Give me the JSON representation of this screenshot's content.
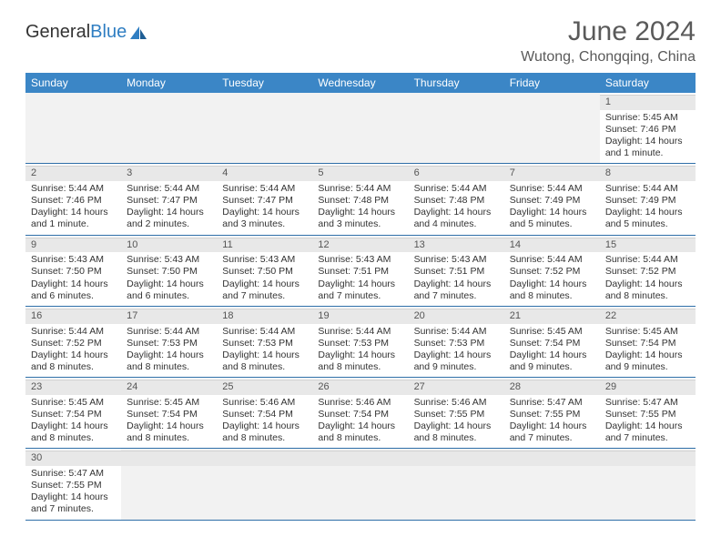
{
  "logo": {
    "text1": "General",
    "text2": "Blue"
  },
  "title": "June 2024",
  "location": "Wutong, Chongqing, China",
  "colors": {
    "header_bg": "#3b86c6",
    "header_text": "#ffffff",
    "daynum_bg": "#e8e8e8",
    "row_border": "#2f6fa8",
    "body_text": "#333333",
    "title_text": "#5a5a5a"
  },
  "weekdays": [
    "Sunday",
    "Monday",
    "Tuesday",
    "Wednesday",
    "Thursday",
    "Friday",
    "Saturday"
  ],
  "layout": {
    "columns": 7,
    "rows": 6,
    "cell_font_size_pt": 10.5,
    "header_font_size_pt": 12
  },
  "days": [
    {
      "n": 1,
      "sunrise": "5:45 AM",
      "sunset": "7:46 PM",
      "daylight": "14 hours and 1 minute."
    },
    {
      "n": 2,
      "sunrise": "5:44 AM",
      "sunset": "7:46 PM",
      "daylight": "14 hours and 1 minute."
    },
    {
      "n": 3,
      "sunrise": "5:44 AM",
      "sunset": "7:47 PM",
      "daylight": "14 hours and 2 minutes."
    },
    {
      "n": 4,
      "sunrise": "5:44 AM",
      "sunset": "7:47 PM",
      "daylight": "14 hours and 3 minutes."
    },
    {
      "n": 5,
      "sunrise": "5:44 AM",
      "sunset": "7:48 PM",
      "daylight": "14 hours and 3 minutes."
    },
    {
      "n": 6,
      "sunrise": "5:44 AM",
      "sunset": "7:48 PM",
      "daylight": "14 hours and 4 minutes."
    },
    {
      "n": 7,
      "sunrise": "5:44 AM",
      "sunset": "7:49 PM",
      "daylight": "14 hours and 5 minutes."
    },
    {
      "n": 8,
      "sunrise": "5:44 AM",
      "sunset": "7:49 PM",
      "daylight": "14 hours and 5 minutes."
    },
    {
      "n": 9,
      "sunrise": "5:43 AM",
      "sunset": "7:50 PM",
      "daylight": "14 hours and 6 minutes."
    },
    {
      "n": 10,
      "sunrise": "5:43 AM",
      "sunset": "7:50 PM",
      "daylight": "14 hours and 6 minutes."
    },
    {
      "n": 11,
      "sunrise": "5:43 AM",
      "sunset": "7:50 PM",
      "daylight": "14 hours and 7 minutes."
    },
    {
      "n": 12,
      "sunrise": "5:43 AM",
      "sunset": "7:51 PM",
      "daylight": "14 hours and 7 minutes."
    },
    {
      "n": 13,
      "sunrise": "5:43 AM",
      "sunset": "7:51 PM",
      "daylight": "14 hours and 7 minutes."
    },
    {
      "n": 14,
      "sunrise": "5:44 AM",
      "sunset": "7:52 PM",
      "daylight": "14 hours and 8 minutes."
    },
    {
      "n": 15,
      "sunrise": "5:44 AM",
      "sunset": "7:52 PM",
      "daylight": "14 hours and 8 minutes."
    },
    {
      "n": 16,
      "sunrise": "5:44 AM",
      "sunset": "7:52 PM",
      "daylight": "14 hours and 8 minutes."
    },
    {
      "n": 17,
      "sunrise": "5:44 AM",
      "sunset": "7:53 PM",
      "daylight": "14 hours and 8 minutes."
    },
    {
      "n": 18,
      "sunrise": "5:44 AM",
      "sunset": "7:53 PM",
      "daylight": "14 hours and 8 minutes."
    },
    {
      "n": 19,
      "sunrise": "5:44 AM",
      "sunset": "7:53 PM",
      "daylight": "14 hours and 8 minutes."
    },
    {
      "n": 20,
      "sunrise": "5:44 AM",
      "sunset": "7:53 PM",
      "daylight": "14 hours and 9 minutes."
    },
    {
      "n": 21,
      "sunrise": "5:45 AM",
      "sunset": "7:54 PM",
      "daylight": "14 hours and 9 minutes."
    },
    {
      "n": 22,
      "sunrise": "5:45 AM",
      "sunset": "7:54 PM",
      "daylight": "14 hours and 9 minutes."
    },
    {
      "n": 23,
      "sunrise": "5:45 AM",
      "sunset": "7:54 PM",
      "daylight": "14 hours and 8 minutes."
    },
    {
      "n": 24,
      "sunrise": "5:45 AM",
      "sunset": "7:54 PM",
      "daylight": "14 hours and 8 minutes."
    },
    {
      "n": 25,
      "sunrise": "5:46 AM",
      "sunset": "7:54 PM",
      "daylight": "14 hours and 8 minutes."
    },
    {
      "n": 26,
      "sunrise": "5:46 AM",
      "sunset": "7:54 PM",
      "daylight": "14 hours and 8 minutes."
    },
    {
      "n": 27,
      "sunrise": "5:46 AM",
      "sunset": "7:55 PM",
      "daylight": "14 hours and 8 minutes."
    },
    {
      "n": 28,
      "sunrise": "5:47 AM",
      "sunset": "7:55 PM",
      "daylight": "14 hours and 7 minutes."
    },
    {
      "n": 29,
      "sunrise": "5:47 AM",
      "sunset": "7:55 PM",
      "daylight": "14 hours and 7 minutes."
    },
    {
      "n": 30,
      "sunrise": "5:47 AM",
      "sunset": "7:55 PM",
      "daylight": "14 hours and 7 minutes."
    }
  ],
  "first_weekday_index": 6,
  "labels": {
    "sunrise": "Sunrise:",
    "sunset": "Sunset:",
    "daylight": "Daylight:"
  }
}
